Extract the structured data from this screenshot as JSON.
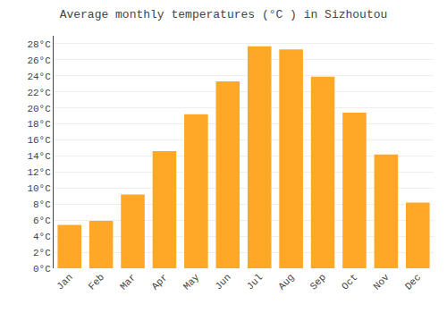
{
  "chart_data": {
    "type": "bar",
    "title": "Average monthly temperatures (°C ) in Sizhoutou",
    "categories": [
      "Jan",
      "Feb",
      "Mar",
      "Apr",
      "May",
      "Jun",
      "Jul",
      "Aug",
      "Sep",
      "Oct",
      "Nov",
      "Dec"
    ],
    "values": [
      5.4,
      5.9,
      9.2,
      14.6,
      19.2,
      23.3,
      27.7,
      27.3,
      23.9,
      19.4,
      14.2,
      8.2
    ],
    "color": "#FFA726",
    "ylim": [
      0,
      29
    ],
    "yticks": [
      {
        "value": 0,
        "label": "0°C"
      },
      {
        "value": 2,
        "label": "2°C"
      },
      {
        "value": 4,
        "label": "4°C"
      },
      {
        "value": 6,
        "label": "6°C"
      },
      {
        "value": 8,
        "label": "8°C"
      },
      {
        "value": 10,
        "label": "10°C"
      },
      {
        "value": 12,
        "label": "12°C"
      },
      {
        "value": 14,
        "label": "14°C"
      },
      {
        "value": 16,
        "label": "16°C"
      },
      {
        "value": 18,
        "label": "18°C"
      },
      {
        "value": 20,
        "label": "20°C"
      },
      {
        "value": 22,
        "label": "22°C"
      },
      {
        "value": 24,
        "label": "24°C"
      },
      {
        "value": 26,
        "label": "26°C"
      },
      {
        "value": 28,
        "label": "28°C"
      }
    ],
    "grid": true
  }
}
